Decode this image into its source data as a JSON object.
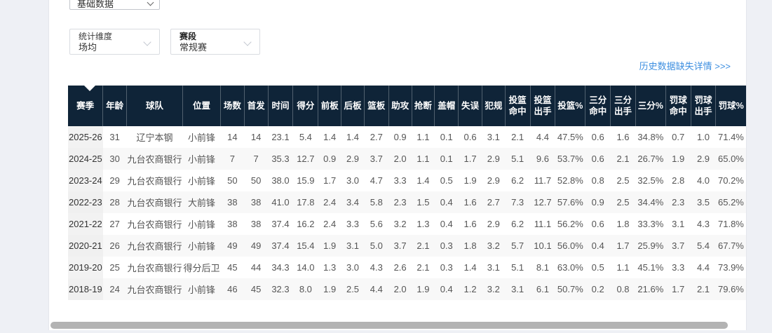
{
  "colors": {
    "page_bg": "#eef0f5",
    "header_bg": "#0f2438",
    "link_blue": "#3e8fe0",
    "stripe": "#f8f8f8",
    "season_col_bg": "#f2f2f2"
  },
  "filters": {
    "data_type_select": {
      "value": "基础数据"
    },
    "dimension_select": {
      "label": "统计维度",
      "value": "场均"
    },
    "stage_select": {
      "label": "赛段",
      "value": "常规赛"
    }
  },
  "links": {
    "history_missing": "历史数据缺失详情 >>>"
  },
  "table": {
    "columns": [
      "赛季",
      "年龄",
      "球队",
      "位置",
      "场数",
      "首发",
      "时间",
      "得分",
      "前板",
      "后板",
      "篮板",
      "助攻",
      "抢断",
      "盖帽",
      "失误",
      "犯规",
      "投篮命中",
      "投篮出手",
      "投篮%",
      "三分命中",
      "三分出手",
      "三分%",
      "罚球命中",
      "罚球出手",
      "罚球%"
    ],
    "rows": [
      [
        "2025-26",
        "31",
        "辽宁本钢",
        "小前锋",
        "14",
        "14",
        "23.1",
        "5.4",
        "1.4",
        "1.4",
        "2.7",
        "0.9",
        "1.1",
        "0.1",
        "0.6",
        "3.1",
        "2.1",
        "4.4",
        "47.5%",
        "0.6",
        "1.6",
        "34.8%",
        "0.7",
        "1.0",
        "71.4%"
      ],
      [
        "2024-25",
        "30",
        "九台农商银行",
        "小前锋",
        "7",
        "7",
        "35.3",
        "12.7",
        "0.9",
        "2.9",
        "3.7",
        "2.0",
        "1.1",
        "0.1",
        "1.7",
        "2.9",
        "5.1",
        "9.6",
        "53.7%",
        "0.6",
        "2.1",
        "26.7%",
        "1.9",
        "2.9",
        "65.0%"
      ],
      [
        "2023-24",
        "29",
        "九台农商银行",
        "小前锋",
        "50",
        "50",
        "38.0",
        "15.9",
        "1.7",
        "3.0",
        "4.7",
        "3.3",
        "1.4",
        "0.5",
        "1.9",
        "2.9",
        "6.2",
        "11.7",
        "52.8%",
        "0.8",
        "2.5",
        "32.5%",
        "2.8",
        "4.0",
        "70.2%"
      ],
      [
        "2022-23",
        "28",
        "九台农商银行",
        "大前锋",
        "38",
        "38",
        "41.0",
        "17.8",
        "2.4",
        "3.4",
        "5.8",
        "2.3",
        "1.5",
        "0.4",
        "1.6",
        "2.7",
        "7.3",
        "12.7",
        "57.6%",
        "0.9",
        "2.5",
        "34.4%",
        "2.3",
        "3.5",
        "65.2%"
      ],
      [
        "2021-22",
        "27",
        "九台农商银行",
        "小前锋",
        "38",
        "38",
        "37.4",
        "16.2",
        "2.4",
        "3.3",
        "5.6",
        "3.2",
        "1.3",
        "0.4",
        "1.6",
        "2.9",
        "6.2",
        "11.1",
        "56.2%",
        "0.6",
        "1.8",
        "33.3%",
        "3.1",
        "4.3",
        "71.8%"
      ],
      [
        "2020-21",
        "26",
        "九台农商银行",
        "小前锋",
        "49",
        "49",
        "37.4",
        "15.4",
        "1.9",
        "3.1",
        "5.0",
        "3.7",
        "2.1",
        "0.3",
        "1.8",
        "3.2",
        "5.7",
        "10.1",
        "56.0%",
        "0.4",
        "1.7",
        "25.9%",
        "3.7",
        "5.4",
        "67.7%"
      ],
      [
        "2019-20",
        "25",
        "九台农商银行",
        "得分后卫",
        "45",
        "44",
        "34.3",
        "14.0",
        "1.3",
        "3.0",
        "4.3",
        "2.6",
        "2.1",
        "0.3",
        "1.4",
        "3.1",
        "5.1",
        "8.1",
        "63.0%",
        "0.5",
        "1.1",
        "45.1%",
        "3.3",
        "4.4",
        "73.9%"
      ],
      [
        "2018-19",
        "24",
        "九台农商银行",
        "小前锋",
        "46",
        "45",
        "32.3",
        "8.0",
        "1.9",
        "2.5",
        "4.4",
        "2.0",
        "1.9",
        "0.4",
        "1.2",
        "3.2",
        "3.1",
        "6.1",
        "50.7%",
        "0.2",
        "0.8",
        "21.6%",
        "1.7",
        "2.1",
        "79.6%"
      ]
    ]
  }
}
